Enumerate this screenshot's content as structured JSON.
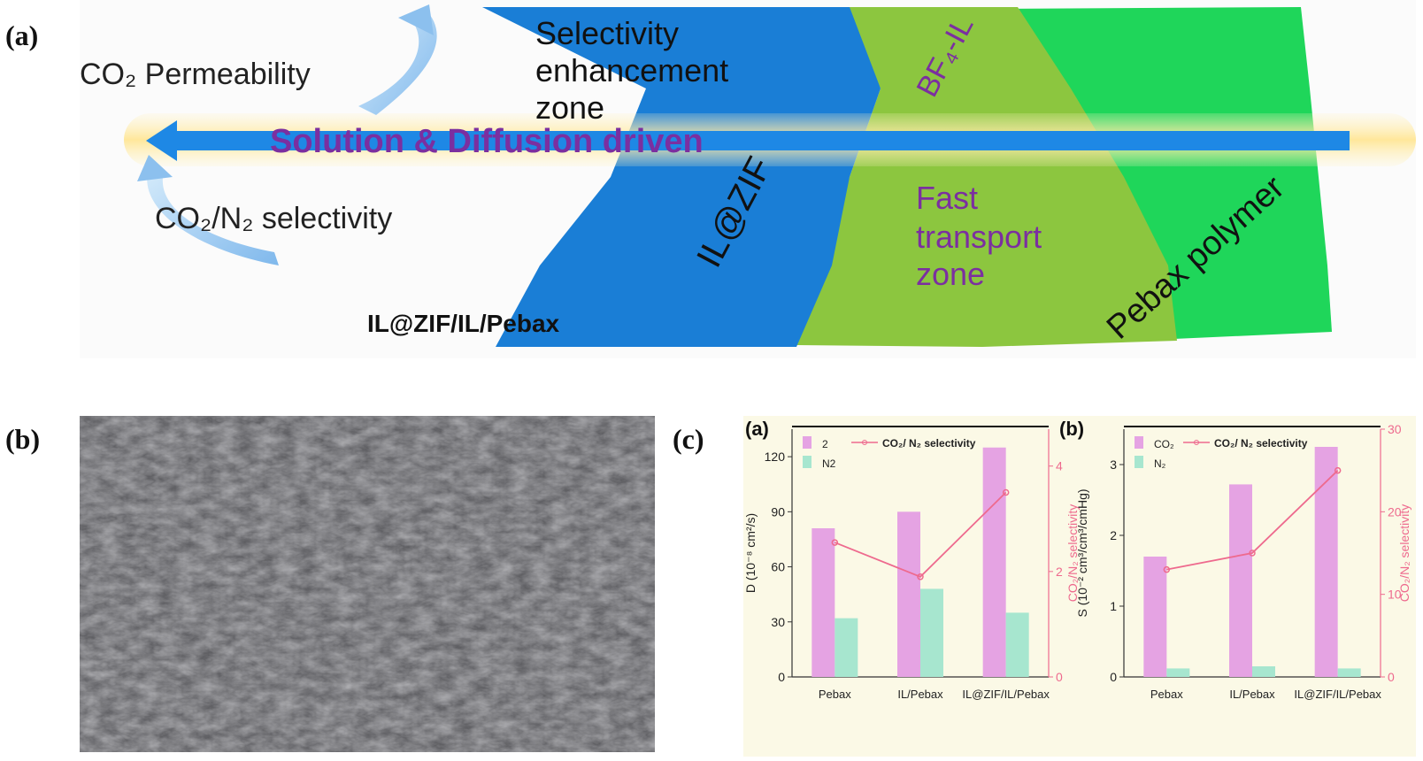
{
  "panels": {
    "a": "(a)",
    "b": "(b)",
    "c": "(c)"
  },
  "schematic": {
    "co2_permeability": "CO₂ Permeability",
    "selectivity_line": "CO₂/N₂ selectivity",
    "membrane_name": "IL@ZIF/IL/Pebax",
    "arrow_label": "Solution & Diffusion driven",
    "zone_selectivity": [
      "Selectivity",
      "enhancement",
      "zone"
    ],
    "zone_fast": [
      "Fast",
      "transport",
      "zone"
    ],
    "ilzif": "IL@ZIF",
    "bf4": "BF₄-IL",
    "pebax_polymer": "Pebax polymer",
    "colors": {
      "blue": "#1a7ed6",
      "light_green": "#8cc63f",
      "green": "#1fd65a",
      "purple": "#7b2fa0",
      "arrow": "#1e88e5"
    }
  },
  "chart_data": [
    {
      "type": "bar",
      "panel_label": "(a)",
      "categories": [
        "Pebax",
        "IL/Pebax",
        "IL@ZIF/IL/Pebax"
      ],
      "ylabel": "D (10⁻⁸ cm²/s)",
      "y2label": "CO₂/N₂ selectivity",
      "ylim": [
        0,
        135
      ],
      "yticks": [
        0,
        30,
        60,
        90,
        120
      ],
      "y2lim": [
        0,
        4.7
      ],
      "y2ticks": [
        0,
        2,
        4
      ],
      "legend": {
        "co2": "2",
        "n2": "N2",
        "line": "CO₂/ N₂ selectivity"
      },
      "series": [
        {
          "name": "2",
          "color": "#e5a3e3",
          "values": [
            81,
            90,
            125
          ]
        },
        {
          "name": "N2",
          "color": "#a7e6cf",
          "values": [
            32,
            48,
            35
          ]
        }
      ],
      "line": {
        "name": "CO₂/ N₂ selectivity",
        "color": "#ee6a8e",
        "values": [
          2.55,
          1.9,
          3.5
        ]
      }
    },
    {
      "type": "bar",
      "panel_label": "(b)",
      "categories": [
        "Pebax",
        "IL/Pebax",
        "IL@ZIF/IL/Pebax"
      ],
      "ylabel": "S (10⁻² cm³/cm³/cmHg)",
      "y2label": "CO₂/N₂ selectivity",
      "ylim": [
        0,
        3.5
      ],
      "yticks": [
        0,
        1,
        2,
        3
      ],
      "y2lim": [
        0,
        30
      ],
      "y2ticks": [
        0,
        10,
        20,
        30
      ],
      "legend": {
        "co2": "CO₂",
        "n2": "N₂",
        "line": "CO₂/ N₂ selectivity"
      },
      "series": [
        {
          "name": "CO₂",
          "color": "#e5a3e3",
          "values": [
            1.7,
            2.72,
            3.25
          ]
        },
        {
          "name": "N₂",
          "color": "#a7e6cf",
          "values": [
            0.12,
            0.15,
            0.12
          ]
        }
      ],
      "line": {
        "name": "CO₂/ N₂ selectivity",
        "color": "#ee6a8e",
        "values": [
          13,
          15,
          25
        ]
      }
    }
  ]
}
